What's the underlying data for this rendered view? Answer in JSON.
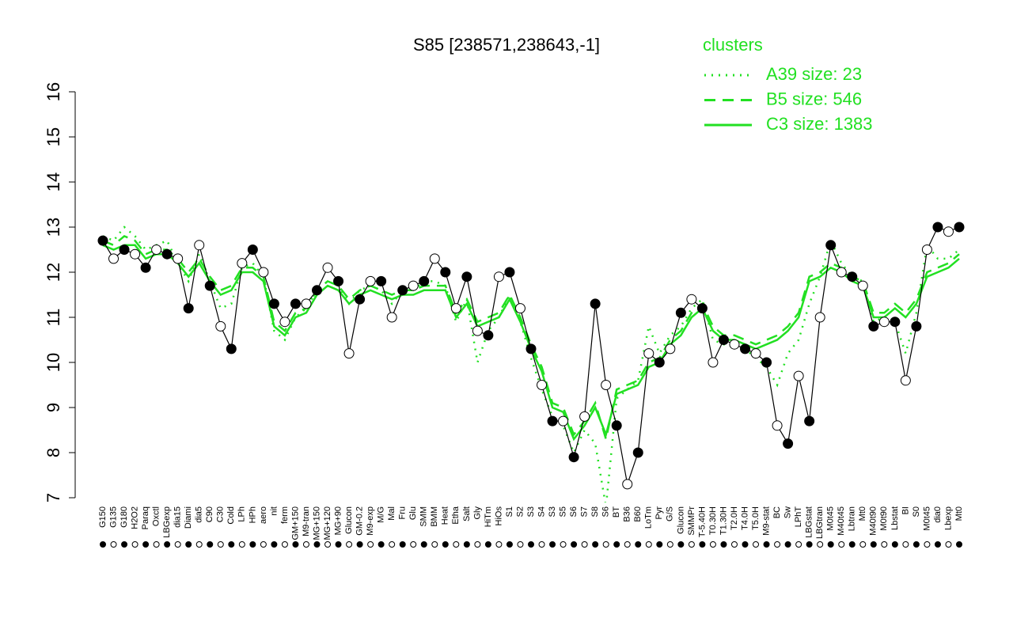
{
  "chart_data": {
    "type": "line",
    "title": "S85 [238571,238643,-1]",
    "legend_title": "clusters",
    "color": "#000000",
    "ylim": [
      7,
      16
    ],
    "yticks": [
      7,
      8,
      9,
      10,
      11,
      12,
      13,
      14,
      15,
      16
    ],
    "categories": [
      "G150",
      "G135",
      "G180",
      "H2O2",
      "Paraq",
      "Oxctl",
      "LBGexp",
      "dia15",
      "Diami",
      "dia5",
      "C90",
      "C30",
      "Cold",
      "LPh",
      "HPh",
      "aero",
      "nit",
      "ferm",
      "GM+150",
      "M9-tran",
      "MG+150",
      "MG+120",
      "MG+90",
      "Glucon",
      "GM-0.2",
      "M9-exp",
      "M/G",
      "Mal",
      "Fru",
      "Glu",
      "SMM",
      "BMM",
      "Heat",
      "Etha",
      "Salt",
      "Gly",
      "HiTm",
      "HiOs",
      "S1",
      "S2",
      "S3",
      "S4",
      "S3",
      "S5",
      "S6",
      "S7",
      "S8",
      "S6",
      "BT",
      "B36",
      "B60",
      "LoTm",
      "Pyr",
      "G/S",
      "Glucon",
      "SMMPr",
      "T-5.40H",
      "T0.30H",
      "T1.30H",
      "T2.0H",
      "T4.0H",
      "T5.0H",
      "M9-stat",
      "BC",
      "Sw",
      "LPhT",
      "LBGstat",
      "LBGtran",
      "M0t45",
      "M40t45",
      "Lbtran",
      "Mt0",
      "M40t90",
      "M0t90",
      "Lbstat",
      "BI",
      "S0",
      "M0t45",
      "dia0",
      "Lbexp",
      "Mt0"
    ],
    "values": [
      12.7,
      12.3,
      12.5,
      12.4,
      12.1,
      12.5,
      12.4,
      12.3,
      11.2,
      12.6,
      11.7,
      10.8,
      10.3,
      12.2,
      12.5,
      12.0,
      11.3,
      10.9,
      11.3,
      11.3,
      11.6,
      12.1,
      11.8,
      10.2,
      11.4,
      11.8,
      11.8,
      11.0,
      11.6,
      11.7,
      11.8,
      12.3,
      12.0,
      11.2,
      11.9,
      10.7,
      10.6,
      11.9,
      12.0,
      11.2,
      10.3,
      9.5,
      8.7,
      8.7,
      7.9,
      8.8,
      11.3,
      9.5,
      8.6,
      7.3,
      8.0,
      10.2,
      10.0,
      10.3,
      11.1,
      11.4,
      11.2,
      10.0,
      10.5,
      10.4,
      10.3,
      10.2,
      10.0,
      8.6,
      8.2,
      9.7,
      8.7,
      11.0,
      12.6,
      12.0,
      11.9,
      11.7,
      10.8,
      10.9,
      10.9,
      9.6,
      10.8,
      12.5,
      13.0,
      12.9,
      13.0
    ],
    "series": [
      {
        "name": "A39 size: 23",
        "color": "#22e022",
        "dash": "dotted",
        "values": [
          12.8,
          12.7,
          13.0,
          12.8,
          12.5,
          12.6,
          12.7,
          12.2,
          11.8,
          12.4,
          11.8,
          11.2,
          11.3,
          12.1,
          12.2,
          11.9,
          10.7,
          10.5,
          11.0,
          11.2,
          11.6,
          11.8,
          11.7,
          11.3,
          11.6,
          11.7,
          11.6,
          11.3,
          11.6,
          11.6,
          11.8,
          11.8,
          11.7,
          10.9,
          11.4,
          10.0,
          10.7,
          11.0,
          11.5,
          10.9,
          10.1,
          9.4,
          8.8,
          8.6,
          8.0,
          8.5,
          8.2,
          6.8,
          9.2,
          9.4,
          9.6,
          10.8,
          10.2,
          10.6,
          10.8,
          11.2,
          11.4,
          10.5,
          10.4,
          10.4,
          10.3,
          10.1,
          9.9,
          9.5,
          10.2,
          10.5,
          11.3,
          11.9,
          12.7,
          12.2,
          11.9,
          11.8,
          10.9,
          11.0,
          10.9,
          10.2,
          11.1,
          12.6,
          12.3,
          12.3,
          12.5
        ]
      },
      {
        "name": "B5 size: 546",
        "color": "#22e022",
        "dash": "dashed",
        "values": [
          12.7,
          12.6,
          12.8,
          12.7,
          12.4,
          12.5,
          12.5,
          12.3,
          12.0,
          12.3,
          11.9,
          11.6,
          11.7,
          12.1,
          12.1,
          11.9,
          10.9,
          10.7,
          11.1,
          11.2,
          11.6,
          11.8,
          11.7,
          11.4,
          11.6,
          11.7,
          11.6,
          11.5,
          11.6,
          11.6,
          11.7,
          11.7,
          11.7,
          11.1,
          11.4,
          10.9,
          11.0,
          11.1,
          11.5,
          11.0,
          10.4,
          9.9,
          9.1,
          9.0,
          8.4,
          8.7,
          9.1,
          8.3,
          9.4,
          9.5,
          9.6,
          10.0,
          10.1,
          10.5,
          10.7,
          11.1,
          11.3,
          10.8,
          10.6,
          10.6,
          10.5,
          10.4,
          10.5,
          10.6,
          10.8,
          11.1,
          11.9,
          12.0,
          12.2,
          12.1,
          11.9,
          11.8,
          11.1,
          11.1,
          11.3,
          11.1,
          11.4,
          12.0,
          12.1,
          12.2,
          12.4
        ]
      },
      {
        "name": "C3 size: 1383",
        "color": "#22e022",
        "dash": "solid",
        "values": [
          12.6,
          12.5,
          12.6,
          12.6,
          12.3,
          12.4,
          12.4,
          12.2,
          11.9,
          12.2,
          11.8,
          11.5,
          11.6,
          12.0,
          12.0,
          11.8,
          10.8,
          10.6,
          11.0,
          11.1,
          11.5,
          11.7,
          11.6,
          11.3,
          11.5,
          11.6,
          11.5,
          11.4,
          11.5,
          11.5,
          11.6,
          11.6,
          11.6,
          11.0,
          11.3,
          10.8,
          10.9,
          11.0,
          11.4,
          10.9,
          10.3,
          9.8,
          9.0,
          8.9,
          8.3,
          8.6,
          9.0,
          8.4,
          9.3,
          9.4,
          9.5,
          9.9,
          10.0,
          10.4,
          10.6,
          11.0,
          11.2,
          10.7,
          10.5,
          10.5,
          10.4,
          10.3,
          10.4,
          10.5,
          10.7,
          11.0,
          11.8,
          11.9,
          12.1,
          12.0,
          11.8,
          11.7,
          11.0,
          11.0,
          11.2,
          11.0,
          11.3,
          11.9,
          12.0,
          12.1,
          12.3
        ]
      }
    ]
  }
}
